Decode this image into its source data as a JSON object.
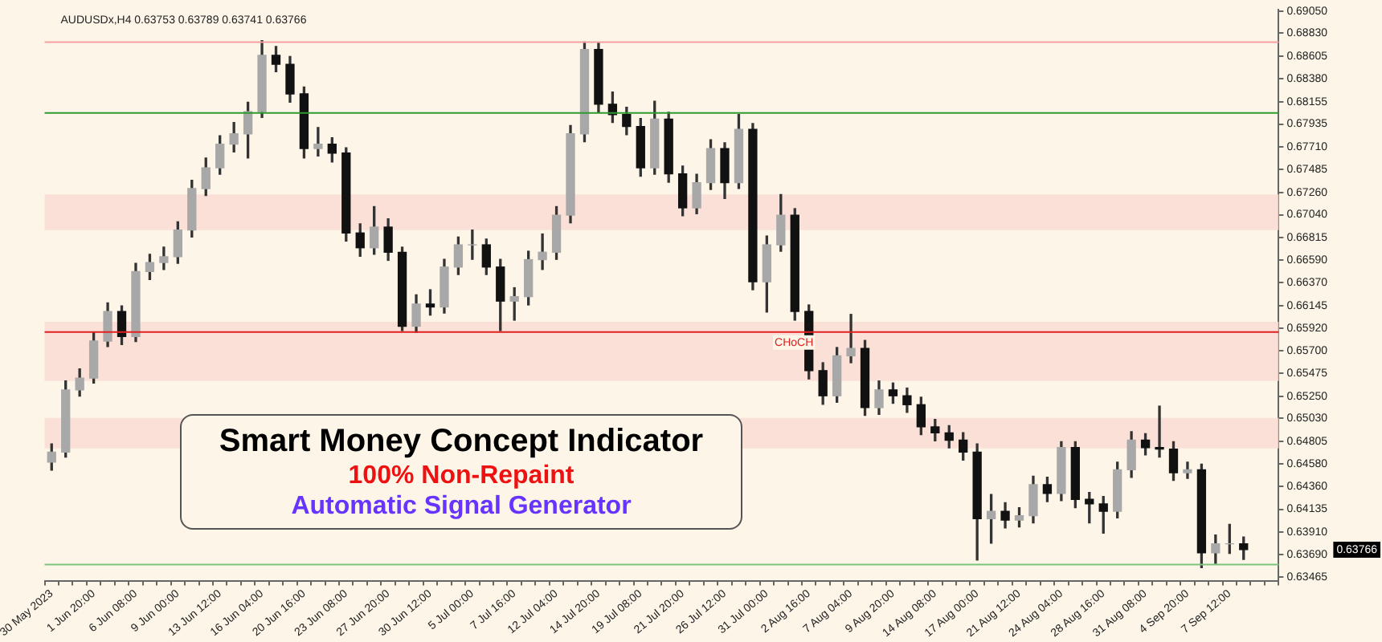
{
  "chart_data": {
    "type": "candlestick",
    "categories": [
      "30 May 2023",
      null,
      null,
      "1 Jun 20:00",
      null,
      null,
      "6 Jun 08:00",
      null,
      null,
      "9 Jun 00:00",
      null,
      null,
      "13 Jun 12:00",
      null,
      null,
      "16 Jun 04:00",
      null,
      null,
      "20 Jun 16:00",
      null,
      null,
      "23 Jun 08:00",
      null,
      null,
      "27 Jun 20:00",
      null,
      null,
      "30 Jun 12:00",
      null,
      null,
      "5 Jul 00:00",
      null,
      null,
      "7 Jul 16:00",
      null,
      null,
      "12 Jul 04:00",
      null,
      null,
      "14 Jul 20:00",
      null,
      null,
      "19 Jul 08:00",
      null,
      null,
      "21 Jul 20:00",
      null,
      null,
      "26 Jul 12:00",
      null,
      null,
      "31 Jul 00:00",
      null,
      null,
      "2 Aug 16:00",
      null,
      null,
      "7 Aug 04:00",
      null,
      null,
      "9 Aug 20:00",
      null,
      null,
      "14 Aug 08:00",
      null,
      null,
      "17 Aug 00:00",
      null,
      null,
      "21 Aug 12:00",
      null,
      null,
      "24 Aug 04:00",
      null,
      null,
      "28 Aug 16:00",
      null,
      null,
      "31 Aug 08:00",
      null,
      null,
      "4 Sep 20:00",
      null,
      null,
      "7 Sep 12:00",
      null,
      null,
      null
    ],
    "ohlc": [
      [
        0.646,
        0.6478,
        0.6452,
        0.64699
      ],
      [
        0.64699,
        0.654,
        0.6465,
        0.65312
      ],
      [
        0.65312,
        0.6552,
        0.6525,
        0.65429
      ],
      [
        0.65429,
        0.6588,
        0.6538,
        0.65794
      ],
      [
        0.65794,
        0.6617,
        0.6574,
        0.66086
      ],
      [
        0.66086,
        0.6614,
        0.6576,
        0.65838
      ],
      [
        0.65838,
        0.6656,
        0.6579,
        0.6648
      ],
      [
        0.6648,
        0.6665,
        0.664,
        0.66568
      ],
      [
        0.66568,
        0.6672,
        0.665,
        0.66626
      ],
      [
        0.66626,
        0.6697,
        0.6656,
        0.66889
      ],
      [
        0.66889,
        0.6738,
        0.6682,
        0.67298
      ],
      [
        0.67298,
        0.676,
        0.6723,
        0.67502
      ],
      [
        0.67502,
        0.6782,
        0.6744,
        0.67736
      ],
      [
        0.67736,
        0.6795,
        0.6766,
        0.67838
      ],
      [
        0.67838,
        0.6815,
        0.676,
        0.68057
      ],
      [
        0.68057,
        0.68758,
        0.68,
        0.68612
      ],
      [
        0.68612,
        0.687,
        0.6845,
        0.68524
      ],
      [
        0.68524,
        0.686,
        0.6815,
        0.68232
      ],
      [
        0.68232,
        0.683,
        0.676,
        0.67692
      ],
      [
        0.67692,
        0.679,
        0.6762,
        0.67736
      ],
      [
        0.67736,
        0.678,
        0.6756,
        0.67648
      ],
      [
        0.67648,
        0.677,
        0.6678,
        0.6686
      ],
      [
        0.6686,
        0.6695,
        0.6663,
        0.66714
      ],
      [
        0.66714,
        0.6712,
        0.6665,
        0.66918
      ],
      [
        0.66918,
        0.67,
        0.6659,
        0.6667
      ],
      [
        0.6667,
        0.6672,
        0.65897,
        0.6594
      ],
      [
        0.6594,
        0.6625,
        0.6588,
        0.66159
      ],
      [
        0.66159,
        0.663,
        0.6605,
        0.6613
      ],
      [
        0.6613,
        0.666,
        0.6607,
        0.66524
      ],
      [
        0.66524,
        0.6682,
        0.6645,
        0.66743
      ],
      [
        0.66743,
        0.66889,
        0.666,
        0.66743
      ],
      [
        0.66743,
        0.668,
        0.6645,
        0.66524
      ],
      [
        0.66524,
        0.666,
        0.65897,
        0.66188
      ],
      [
        0.66188,
        0.6632,
        0.66,
        0.66232
      ],
      [
        0.66232,
        0.6668,
        0.6615,
        0.66597
      ],
      [
        0.66597,
        0.6685,
        0.665,
        0.6667
      ],
      [
        0.6667,
        0.6712,
        0.666,
        0.67035
      ],
      [
        0.67035,
        0.6792,
        0.6696,
        0.67838
      ],
      [
        0.67838,
        0.68743,
        0.6776,
        0.6867
      ],
      [
        0.6867,
        0.6874,
        0.6805,
        0.6813
      ],
      [
        0.6813,
        0.6825,
        0.6795,
        0.68028
      ],
      [
        0.68028,
        0.681,
        0.6783,
        0.67911
      ],
      [
        0.67911,
        0.6799,
        0.6742,
        0.67502
      ],
      [
        0.67502,
        0.68159,
        0.6744,
        0.67984
      ],
      [
        0.67984,
        0.6805,
        0.6736,
        0.67444
      ],
      [
        0.67444,
        0.6752,
        0.6703,
        0.67108
      ],
      [
        0.67108,
        0.6744,
        0.6705,
        0.67356
      ],
      [
        0.67356,
        0.6778,
        0.6729,
        0.67692
      ],
      [
        0.67692,
        0.6775,
        0.672,
        0.67356
      ],
      [
        0.67356,
        0.68028,
        0.673,
        0.67882
      ],
      [
        0.67882,
        0.6794,
        0.663,
        0.66378
      ],
      [
        0.66378,
        0.6683,
        0.6608,
        0.66743
      ],
      [
        0.66743,
        0.6724,
        0.6668,
        0.67035
      ],
      [
        0.67035,
        0.671,
        0.66,
        0.66086
      ],
      [
        0.66086,
        0.6615,
        0.6542,
        0.65502
      ],
      [
        0.65502,
        0.6558,
        0.6517,
        0.65254
      ],
      [
        0.65254,
        0.6573,
        0.6519,
        0.65648
      ],
      [
        0.65648,
        0.66057,
        0.6558,
        0.65721
      ],
      [
        0.65721,
        0.658,
        0.6506,
        0.65137
      ],
      [
        0.65137,
        0.654,
        0.6507,
        0.65312
      ],
      [
        0.65312,
        0.6538,
        0.6518,
        0.65254
      ],
      [
        0.65254,
        0.6533,
        0.6509,
        0.65166
      ],
      [
        0.65166,
        0.6524,
        0.6487,
        0.64947
      ],
      [
        0.64947,
        0.6502,
        0.6481,
        0.64889
      ],
      [
        0.64889,
        0.6496,
        0.6474,
        0.64816
      ],
      [
        0.64816,
        0.6489,
        0.6462,
        0.64699
      ],
      [
        0.64699,
        0.6478,
        0.63633,
        0.64042
      ],
      [
        0.64042,
        0.6428,
        0.638,
        0.64115
      ],
      [
        0.64115,
        0.642,
        0.6395,
        0.64028
      ],
      [
        0.64028,
        0.6415,
        0.6396,
        0.64071
      ],
      [
        0.64071,
        0.6446,
        0.64,
        0.64378
      ],
      [
        0.64378,
        0.6445,
        0.6421,
        0.6429
      ],
      [
        0.6429,
        0.64801,
        0.6422,
        0.64743
      ],
      [
        0.64743,
        0.648,
        0.6415,
        0.64232
      ],
      [
        0.64232,
        0.643,
        0.64,
        0.64188
      ],
      [
        0.64188,
        0.6426,
        0.639,
        0.64115
      ],
      [
        0.64115,
        0.646,
        0.6405,
        0.64524
      ],
      [
        0.64524,
        0.649,
        0.6445,
        0.64816
      ],
      [
        0.64816,
        0.6488,
        0.6467,
        0.64743
      ],
      [
        0.64743,
        0.65152,
        0.6465,
        0.64728
      ],
      [
        0.64728,
        0.648,
        0.6442,
        0.64495
      ],
      [
        0.64495,
        0.646,
        0.6444,
        0.64524
      ],
      [
        0.64524,
        0.6458,
        0.63559,
        0.63706
      ],
      [
        0.63706,
        0.6388,
        0.636,
        0.63794
      ],
      [
        0.63794,
        0.63986,
        0.637,
        0.63794
      ],
      [
        0.63794,
        0.6386,
        0.6364,
        0.63736
      ],
      null,
      null
    ],
    "ylim": [
      0.6343,
      0.6906
    ],
    "yticks": [
      {
        "value": 0.6905,
        "label": "0.69050"
      },
      {
        "value": 0.6883,
        "label": "0.68830"
      },
      0.68605,
      {
        "value": 0.6838,
        "label": "0.68380"
      },
      0.68155,
      0.67935,
      {
        "value": 0.6771,
        "label": "0.67710"
      },
      0.67485,
      {
        "value": 0.6726,
        "label": "0.67260"
      },
      {
        "value": 0.6704,
        "label": "0.67040"
      },
      0.66815,
      {
        "value": 0.6659,
        "label": "0.66590"
      },
      {
        "value": 0.6637,
        "label": "0.66370"
      },
      0.66145,
      {
        "value": 0.6592,
        "label": "0.65920"
      },
      {
        "value": 0.657,
        "label": "0.65700"
      },
      0.65475,
      {
        "value": 0.6525,
        "label": "0.65250"
      },
      {
        "value": 0.6503,
        "label": "0.65030"
      },
      0.64805,
      {
        "value": 0.6458,
        "label": "0.64580"
      },
      {
        "value": 0.6436,
        "label": "0.64360"
      },
      0.64135,
      {
        "value": 0.6391,
        "label": "0.63910"
      },
      {
        "value": 0.6369,
        "label": "0.63690"
      },
      0.63465
    ],
    "bands": [
      {
        "axis": "y",
        "from": 0.66889,
        "to": 0.6724,
        "color": "#f9dcd2"
      },
      {
        "axis": "y",
        "from": 0.654,
        "to": 0.65984,
        "color": "#f9dcd2"
      },
      {
        "axis": "y",
        "from": 0.64735,
        "to": 0.65035,
        "color": "#f9dcd2"
      }
    ],
    "ref_lines": [
      {
        "axis": "y",
        "value": 0.68743,
        "color": "#f4a0a0"
      },
      {
        "axis": "y",
        "value": 0.68043,
        "color": "#2e9b2e"
      },
      {
        "axis": "y",
        "value": 0.65882,
        "label": "CHoCH",
        "color": "#e02020"
      },
      {
        "axis": "y",
        "value": 0.6359,
        "color": "#7cc47c"
      }
    ],
    "annotations": [
      "AUDUSDx,H4 0.63753 0.63789 0.63741 0.63766",
      "Smart Money Concept Indicator",
      "100% Non-Repaint",
      "Automatic Signal Generator",
      "0.63766"
    ]
  }
}
